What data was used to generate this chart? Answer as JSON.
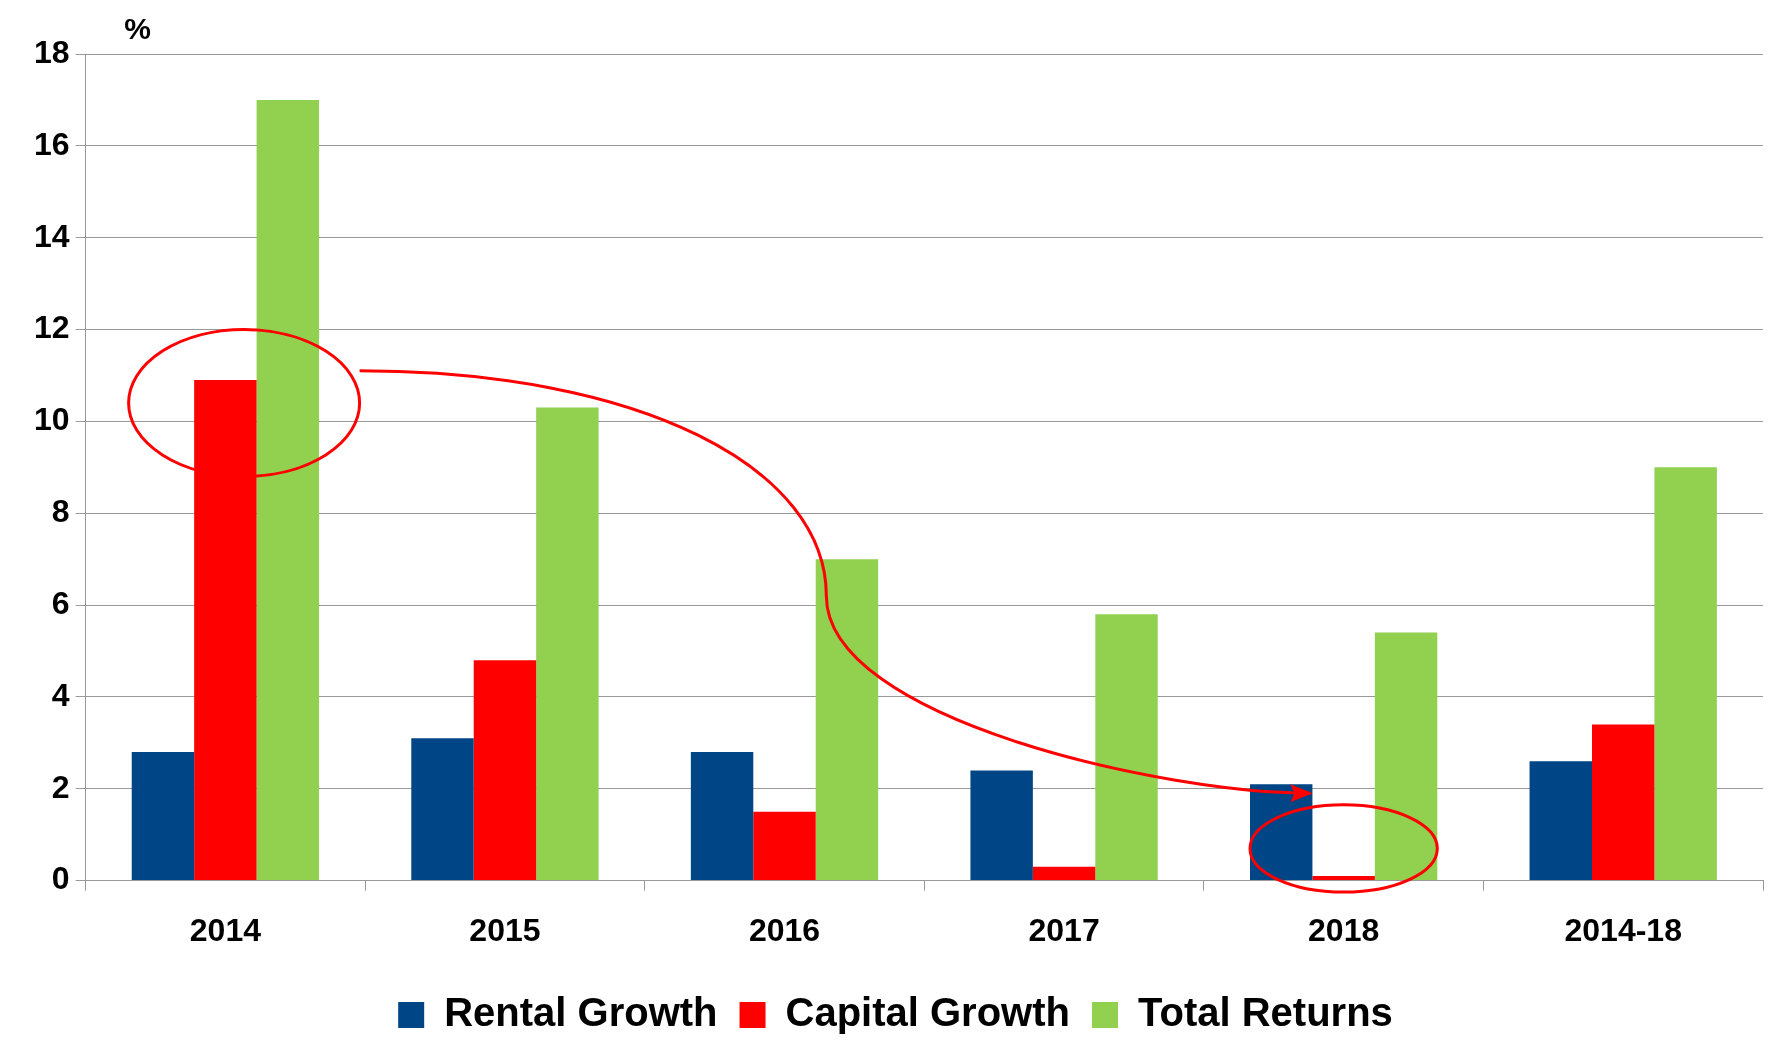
{
  "chart_data": {
    "type": "bar",
    "ylabel": "%",
    "categories": [
      "2014",
      "2015",
      "2016",
      "2017",
      "2018",
      "2014-18"
    ],
    "series": [
      {
        "name": "Rental Growth",
        "color": "#004586",
        "values": [
          2.8,
          3.1,
          2.8,
          2.4,
          2.1,
          2.6
        ]
      },
      {
        "name": "Capital Growth",
        "color": "#ff0000",
        "values": [
          10.9,
          4.8,
          1.5,
          0.3,
          0.1,
          3.4
        ]
      },
      {
        "name": "Total Returns",
        "color": "#92d050",
        "values": [
          17.0,
          10.3,
          7.0,
          5.8,
          5.4,
          9.0
        ]
      }
    ],
    "ylim": [
      0,
      18
    ],
    "yticks": [
      0,
      2,
      4,
      6,
      8,
      10,
      12,
      14,
      16,
      18
    ],
    "grid": "y",
    "legend": "bottom"
  }
}
